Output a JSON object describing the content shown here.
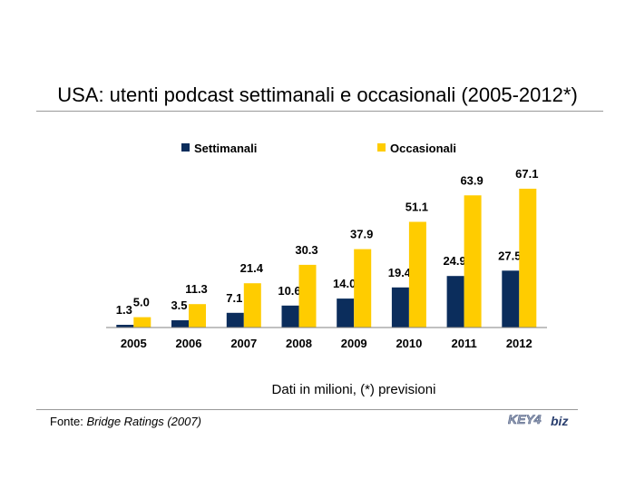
{
  "title": "USA: utenti podcast settimanali e occasionali (2005-2012*)",
  "note": "Dati in milioni, (*) previsioni",
  "source": {
    "label": "Fonte: ",
    "name": "Bridge Ratings (2007)"
  },
  "logo": {
    "part1": "KEY4",
    "part2": "biz"
  },
  "colors": {
    "settimanali": "#0b2d5c",
    "occasionali": "#ffcc00"
  },
  "chart_data": {
    "type": "bar",
    "categories": [
      "2005",
      "2006",
      "2007",
      "2008",
      "2009",
      "2010",
      "2011",
      "2012"
    ],
    "series": [
      {
        "name": "Settimanali",
        "values": [
          1.3,
          3.5,
          7.1,
          10.6,
          14.0,
          19.4,
          24.9,
          27.5
        ]
      },
      {
        "name": "Occasionali",
        "values": [
          5.0,
          11.3,
          21.4,
          30.3,
          37.9,
          51.1,
          63.9,
          67.1
        ]
      }
    ],
    "value_labels": {
      "Settimanali": [
        "1.3",
        "3.5",
        "7.1",
        "10.6",
        "14.0",
        "19.4",
        "24.9",
        "27.5"
      ],
      "Occasionali": [
        "5.0",
        "11.3",
        "21.4",
        "30.3",
        "37.9",
        "51.1",
        "63.9",
        "67.1"
      ]
    },
    "title": "USA: utenti podcast settimanali e occasionali (2005-2012*)",
    "legend_position": "top",
    "grid": false,
    "ylim": [
      0,
      67.1
    ]
  }
}
